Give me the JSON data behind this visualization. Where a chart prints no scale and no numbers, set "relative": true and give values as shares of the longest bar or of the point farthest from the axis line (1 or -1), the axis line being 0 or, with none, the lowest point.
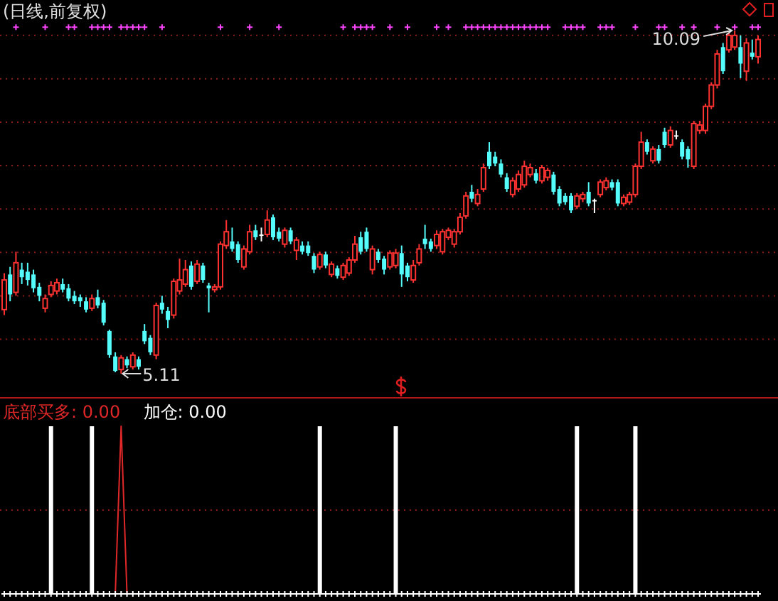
{
  "chart_data": [
    {
      "type": "candlestick",
      "title": "(日线,前复权)",
      "categories": [
        null,
        null,
        null,
        null,
        null,
        null,
        null,
        null,
        null,
        null,
        null,
        null,
        null,
        null,
        null,
        null,
        null,
        null,
        null,
        null,
        null,
        null,
        null,
        null,
        null,
        null,
        null,
        null,
        null,
        null,
        null,
        null,
        null,
        null,
        null,
        null,
        null,
        null,
        null,
        null,
        null,
        null,
        null,
        null,
        null,
        null,
        null,
        null,
        null,
        null,
        null,
        null,
        null,
        null,
        null,
        null,
        null,
        null,
        null,
        null,
        null,
        null,
        null,
        null,
        null,
        null,
        null,
        null,
        null,
        null,
        null,
        null,
        null,
        null,
        null,
        null,
        null,
        null,
        null,
        null,
        null,
        null,
        null,
        null,
        null,
        null,
        null,
        null,
        null,
        null,
        null,
        null,
        null,
        null,
        null,
        null,
        null,
        null,
        null,
        null,
        null,
        null,
        null,
        null,
        null,
        null,
        null,
        null,
        null,
        null,
        null,
        null,
        null,
        null,
        null,
        null,
        null,
        null,
        null,
        null,
        null,
        null,
        null,
        null,
        null,
        null,
        null,
        null,
        null,
        null
      ],
      "ohlc": [
        [
          6.04,
          6.57,
          5.96,
          6.47
        ],
        [
          6.55,
          6.66,
          6.16,
          6.26
        ],
        [
          6.29,
          6.88,
          6.24,
          6.72
        ],
        [
          6.62,
          6.72,
          6.41,
          6.51
        ],
        [
          6.59,
          6.72,
          6.39,
          6.47
        ],
        [
          6.55,
          6.62,
          6.29,
          6.35
        ],
        [
          6.37,
          6.43,
          6.16,
          6.24
        ],
        [
          6.06,
          6.26,
          6.0,
          6.2
        ],
        [
          6.26,
          6.45,
          6.22,
          6.39
        ],
        [
          6.31,
          6.49,
          6.26,
          6.43
        ],
        [
          6.41,
          6.49,
          6.29,
          6.33
        ],
        [
          6.35,
          6.41,
          6.16,
          6.2
        ],
        [
          6.24,
          6.31,
          6.12,
          6.16
        ],
        [
          6.22,
          6.26,
          6.08,
          6.16
        ],
        [
          6.16,
          6.22,
          6.0,
          6.04
        ],
        [
          6.06,
          6.26,
          6.02,
          6.2
        ],
        [
          6.22,
          6.33,
          6.06,
          6.1
        ],
        [
          6.14,
          6.18,
          5.81,
          5.85
        ],
        [
          5.73,
          5.75,
          5.34,
          5.38
        ],
        [
          5.36,
          5.42,
          5.13,
          5.15
        ],
        [
          5.17,
          5.38,
          5.11,
          5.34
        ],
        [
          5.32,
          5.36,
          5.19,
          5.23
        ],
        [
          5.21,
          5.42,
          5.17,
          5.38
        ],
        [
          5.32,
          5.36,
          5.17,
          5.21
        ],
        [
          5.73,
          5.83,
          5.54,
          5.58
        ],
        [
          5.63,
          5.67,
          5.38,
          5.42
        ],
        [
          5.38,
          6.14,
          5.32,
          6.1
        ],
        [
          6.14,
          6.24,
          5.98,
          6.04
        ],
        [
          6.02,
          6.08,
          5.77,
          5.89
        ],
        [
          5.96,
          6.49,
          5.91,
          6.45
        ],
        [
          6.31,
          6.78,
          6.26,
          6.47
        ],
        [
          6.41,
          6.76,
          6.37,
          6.62
        ],
        [
          6.68,
          6.74,
          6.33,
          6.37
        ],
        [
          6.45,
          6.76,
          6.41,
          6.7
        ],
        [
          6.68,
          6.72,
          6.43,
          6.47
        ],
        [
          6.39,
          6.43,
          6.0,
          6.35
        ],
        [
          6.33,
          6.41,
          6.29,
          6.37
        ],
        [
          6.37,
          7.03,
          6.33,
          6.99
        ],
        [
          6.97,
          7.34,
          6.92,
          7.17
        ],
        [
          7.03,
          7.23,
          6.88,
          6.92
        ],
        [
          6.99,
          7.03,
          6.72,
          6.76
        ],
        [
          6.66,
          6.97,
          6.62,
          6.92
        ],
        [
          6.88,
          7.27,
          6.84,
          7.17
        ],
        [
          7.19,
          7.27,
          7.05,
          7.09
        ],
        [
          7.13,
          7.23,
          7.03,
          7.13
        ],
        [
          7.13,
          7.48,
          7.09,
          7.34
        ],
        [
          7.38,
          7.42,
          7.05,
          7.09
        ],
        [
          7.17,
          7.23,
          7.03,
          7.07
        ],
        [
          6.99,
          7.23,
          6.94,
          7.19
        ],
        [
          7.19,
          7.23,
          6.99,
          7.03
        ],
        [
          6.9,
          7.09,
          6.76,
          7.05
        ],
        [
          6.97,
          7.03,
          6.84,
          6.88
        ],
        [
          6.97,
          7.03,
          6.82,
          6.86
        ],
        [
          6.82,
          6.86,
          6.57,
          6.62
        ],
        [
          6.66,
          6.88,
          6.62,
          6.84
        ],
        [
          6.84,
          6.88,
          6.64,
          6.68
        ],
        [
          6.55,
          6.74,
          6.51,
          6.7
        ],
        [
          6.64,
          6.68,
          6.49,
          6.53
        ],
        [
          6.51,
          6.72,
          6.47,
          6.68
        ],
        [
          6.57,
          6.8,
          6.53,
          6.76
        ],
        [
          6.76,
          7.11,
          6.72,
          6.99
        ],
        [
          7.09,
          7.17,
          6.84,
          6.88
        ],
        [
          7.17,
          7.23,
          6.88,
          6.92
        ],
        [
          6.62,
          6.97,
          6.55,
          6.92
        ],
        [
          6.88,
          6.92,
          6.72,
          6.76
        ],
        [
          6.78,
          6.82,
          6.55,
          6.62
        ],
        [
          6.66,
          6.9,
          6.62,
          6.86
        ],
        [
          6.68,
          6.92,
          6.64,
          6.86
        ],
        [
          6.86,
          6.97,
          6.37,
          6.55
        ],
        [
          6.68,
          6.72,
          6.45,
          6.51
        ],
        [
          6.47,
          6.76,
          6.43,
          6.68
        ],
        [
          6.72,
          6.99,
          6.68,
          6.92
        ],
        [
          7.07,
          7.27,
          6.92,
          6.99
        ],
        [
          7.03,
          7.07,
          6.88,
          6.92
        ],
        [
          6.97,
          7.19,
          6.92,
          7.13
        ],
        [
          6.88,
          7.21,
          6.84,
          7.17
        ],
        [
          7.09,
          7.23,
          7.05,
          7.19
        ],
        [
          6.99,
          7.21,
          6.94,
          7.17
        ],
        [
          7.17,
          7.44,
          7.13,
          7.38
        ],
        [
          7.4,
          7.75,
          7.36,
          7.69
        ],
        [
          7.75,
          7.85,
          7.6,
          7.65
        ],
        [
          7.58,
          7.79,
          7.54,
          7.71
        ],
        [
          7.79,
          8.16,
          7.75,
          8.1
        ],
        [
          8.33,
          8.47,
          8.08,
          8.12
        ],
        [
          8.26,
          8.33,
          8.12,
          8.16
        ],
        [
          8.16,
          8.22,
          7.96,
          8.0
        ],
        [
          7.96,
          8.02,
          7.75,
          7.79
        ],
        [
          7.71,
          7.96,
          7.67,
          7.91
        ],
        [
          7.79,
          8.06,
          7.75,
          8.0
        ],
        [
          7.85,
          8.2,
          7.81,
          8.12
        ],
        [
          8.0,
          8.16,
          7.96,
          8.1
        ],
        [
          8.02,
          8.08,
          7.87,
          7.91
        ],
        [
          7.91,
          8.14,
          7.87,
          8.1
        ],
        [
          7.96,
          8.1,
          7.91,
          8.06
        ],
        [
          8.0,
          8.04,
          7.71,
          7.75
        ],
        [
          7.79,
          7.83,
          7.54,
          7.58
        ],
        [
          7.69,
          7.73,
          7.56,
          7.6
        ],
        [
          7.69,
          7.73,
          7.44,
          7.48
        ],
        [
          7.54,
          7.73,
          7.5,
          7.69
        ],
        [
          7.65,
          7.75,
          7.6,
          7.71
        ],
        [
          7.75,
          7.89,
          7.54,
          7.58
        ],
        [
          7.63,
          7.65,
          7.44,
          7.63
        ],
        [
          7.71,
          7.93,
          7.67,
          7.89
        ],
        [
          7.81,
          7.96,
          7.77,
          7.91
        ],
        [
          7.89,
          7.93,
          7.77,
          7.81
        ],
        [
          7.89,
          7.93,
          7.54,
          7.58
        ],
        [
          7.58,
          7.71,
          7.54,
          7.67
        ],
        [
          7.6,
          7.75,
          7.56,
          7.71
        ],
        [
          7.71,
          8.16,
          7.67,
          8.12
        ],
        [
          8.12,
          8.62,
          8.08,
          8.47
        ],
        [
          8.47,
          8.51,
          8.29,
          8.33
        ],
        [
          8.2,
          8.41,
          8.16,
          8.37
        ],
        [
          8.37,
          8.43,
          8.16,
          8.2
        ],
        [
          8.62,
          8.68,
          8.39,
          8.43
        ],
        [
          8.43,
          8.7,
          8.39,
          8.64
        ],
        [
          8.57,
          8.64,
          8.51,
          8.57
        ],
        [
          8.47,
          8.51,
          8.22,
          8.26
        ],
        [
          8.37,
          8.41,
          8.1,
          8.22
        ],
        [
          8.12,
          8.78,
          8.08,
          8.74
        ],
        [
          8.64,
          8.78,
          8.59,
          8.72
        ],
        [
          8.64,
          9.03,
          8.59,
          8.99
        ],
        [
          8.99,
          9.34,
          8.95,
          9.3
        ],
        [
          9.3,
          9.81,
          9.25,
          9.75
        ],
        [
          9.85,
          9.91,
          9.46,
          9.5
        ],
        [
          9.81,
          10.06,
          9.77,
          10.02
        ],
        [
          9.85,
          10.09,
          9.81,
          10.02
        ],
        [
          9.85,
          10.02,
          9.4,
          9.61
        ],
        [
          9.5,
          9.98,
          9.36,
          9.91
        ],
        [
          9.77,
          9.96,
          9.67,
          9.71
        ],
        [
          9.71,
          10.02,
          9.61,
          9.96
        ]
      ],
      "colors": [
        "#ff3232",
        "#54fcfc",
        "#ff3232",
        "#54fcfc",
        "#54fcfc",
        "#54fcfc",
        "#54fcfc",
        "#ff3232",
        "#ff3232",
        "#ff3232",
        "#54fcfc",
        "#54fcfc",
        "#54fcfc",
        "#54fcfc",
        "#54fcfc",
        "#ff3232",
        "#54fcfc",
        "#54fcfc",
        "#54fcfc",
        "#54fcfc",
        "#ff3232",
        "#54fcfc",
        "#ff3232",
        "#54fcfc",
        "#54fcfc",
        "#54fcfc",
        "#ff3232",
        "#54fcfc",
        "#54fcfc",
        "#ff3232",
        "#ff3232",
        "#ff3232",
        "#54fcfc",
        "#ff3232",
        "#54fcfc",
        "#54fcfc",
        "#ff3232",
        "#ff3232",
        "#ff3232",
        "#54fcfc",
        "#54fcfc",
        "#ff3232",
        "#ff3232",
        "#54fcfc",
        "#ffffff",
        "#ff3232",
        "#54fcfc",
        "#54fcfc",
        "#ff3232",
        "#54fcfc",
        "#ff3232",
        "#54fcfc",
        "#54fcfc",
        "#54fcfc",
        "#ff3232",
        "#54fcfc",
        "#ff3232",
        "#54fcfc",
        "#ff3232",
        "#ff3232",
        "#ff3232",
        "#54fcfc",
        "#54fcfc",
        "#ff3232",
        "#54fcfc",
        "#54fcfc",
        "#ff3232",
        "#ff3232",
        "#54fcfc",
        "#54fcfc",
        "#ff3232",
        "#ff3232",
        "#54fcfc",
        "#54fcfc",
        "#ff3232",
        "#ff3232",
        "#ff3232",
        "#ff3232",
        "#ff3232",
        "#ff3232",
        "#54fcfc",
        "#ff3232",
        "#ff3232",
        "#54fcfc",
        "#54fcfc",
        "#54fcfc",
        "#54fcfc",
        "#ff3232",
        "#ff3232",
        "#ff3232",
        "#ff3232",
        "#54fcfc",
        "#ff3232",
        "#ff3232",
        "#54fcfc",
        "#54fcfc",
        "#54fcfc",
        "#54fcfc",
        "#ff3232",
        "#ff3232",
        "#54fcfc",
        "#ffffff",
        "#ff3232",
        "#ff3232",
        "#54fcfc",
        "#54fcfc",
        "#ff3232",
        "#ff3232",
        "#ff3232",
        "#ff3232",
        "#54fcfc",
        "#ff3232",
        "#54fcfc",
        "#54fcfc",
        "#ff3232",
        "#ffffff",
        "#54fcfc",
        "#54fcfc",
        "#ff3232",
        "#ff3232",
        "#ff3232",
        "#ff3232",
        "#ff3232",
        "#54fcfc",
        "#ff3232",
        "#ff3232",
        "#54fcfc",
        "#ff3232",
        "#54fcfc",
        "#ff3232"
      ],
      "yticks": [
        {
          "value": 10.02,
          "label": null
        },
        {
          "value": 9.39,
          "label": null
        },
        {
          "value": 8.76,
          "label": null
        },
        {
          "value": 8.13,
          "label": null
        },
        {
          "value": 7.5,
          "label": null
        },
        {
          "value": 6.87,
          "label": null
        },
        {
          "value": 6.24,
          "label": null
        },
        {
          "value": 5.61,
          "label": null
        }
      ],
      "grid": "y",
      "annotations": [
        {
          "text": "10.09",
          "y": 10.09
        },
        "5.11"
      ],
      "series": [
        {
          "type": "scatter",
          "marker": "cross",
          "color": "#ff44ff",
          "values": [
            null,
            null,
            10.14,
            null,
            null,
            null,
            null,
            10.14,
            null,
            null,
            null,
            10.14,
            10.14,
            null,
            null,
            10.14,
            10.14,
            10.14,
            10.14,
            null,
            10.14,
            10.14,
            10.14,
            10.14,
            10.14,
            null,
            null,
            10.14,
            null,
            null,
            null,
            null,
            null,
            null,
            null,
            null,
            null,
            10.14,
            null,
            null,
            null,
            null,
            10.14,
            null,
            null,
            null,
            null,
            10.14,
            null,
            null,
            null,
            null,
            null,
            null,
            null,
            null,
            null,
            null,
            10.14,
            null,
            10.14,
            10.14,
            10.14,
            10.14,
            null,
            null,
            10.14,
            null,
            null,
            10.14,
            null,
            null,
            null,
            null,
            10.14,
            null,
            10.14,
            null,
            null,
            10.14,
            10.14,
            10.14,
            10.14,
            10.14,
            10.14,
            10.14,
            10.14,
            10.14,
            10.14,
            10.14,
            10.14,
            10.14,
            10.14,
            10.14,
            null,
            null,
            10.14,
            10.14,
            10.14,
            10.14,
            null,
            null,
            10.14,
            10.14,
            10.14,
            null,
            null,
            null,
            10.14,
            null,
            null,
            null,
            10.14,
            10.14,
            null,
            null,
            10.14,
            null,
            10.14,
            null,
            null,
            null,
            10.14,
            null,
            null,
            10.14,
            null,
            null,
            10.14,
            10.14
          ]
        }
      ]
    },
    {
      "type": "line",
      "relative": true,
      "categories": [
        null,
        null,
        null,
        null,
        null,
        null,
        null,
        null,
        null,
        null,
        null,
        null,
        null,
        null,
        null,
        null,
        null,
        null,
        null,
        null,
        null,
        null,
        null,
        null,
        null,
        null,
        null,
        null,
        null,
        null,
        null,
        null,
        null,
        null,
        null,
        null,
        null,
        null,
        null,
        null,
        null,
        null,
        null,
        null,
        null,
        null,
        null,
        null,
        null,
        null,
        null,
        null,
        null,
        null,
        null,
        null,
        null,
        null,
        null,
        null,
        null,
        null,
        null,
        null,
        null,
        null,
        null,
        null,
        null,
        null,
        null,
        null,
        null,
        null,
        null,
        null,
        null,
        null,
        null,
        null,
        null,
        null,
        null,
        null,
        null,
        null,
        null,
        null,
        null,
        null,
        null,
        null,
        null,
        null,
        null,
        null,
        null,
        null,
        null,
        null,
        null,
        null,
        null,
        null,
        null,
        null,
        null,
        null,
        null,
        null,
        null,
        null,
        null,
        null,
        null,
        null,
        null,
        null,
        null,
        null,
        null,
        null,
        null,
        null,
        null,
        null,
        null,
        null,
        null,
        null
      ],
      "ref_lines": [
        {
          "axis": "y",
          "value": 0.5,
          "color": "#8b1a1a",
          "line_style": "dotted"
        }
      ],
      "series": [
        {
          "name": "底部买多: 0.00",
          "type": "line",
          "color": "#e02828",
          "values": [
            null,
            null,
            null,
            null,
            null,
            null,
            null,
            null,
            null,
            null,
            null,
            null,
            null,
            null,
            null,
            null,
            null,
            null,
            null,
            0,
            1,
            0,
            null,
            null,
            null,
            null,
            null,
            null,
            null,
            null,
            null,
            null,
            null,
            null,
            null,
            null,
            null,
            null,
            null,
            null,
            null,
            null,
            null,
            null,
            null,
            null,
            null,
            null,
            null,
            null,
            null,
            null,
            null,
            null,
            null,
            null,
            null,
            null,
            null,
            null,
            null,
            null,
            null,
            null,
            null,
            null,
            null,
            null,
            null,
            null,
            null,
            null,
            null,
            null,
            null,
            null,
            null,
            null,
            null,
            null,
            null,
            null,
            null,
            null,
            null,
            null,
            null,
            null,
            null,
            null,
            null,
            null,
            null,
            null,
            null,
            null,
            null,
            null,
            null,
            null,
            null,
            null,
            null,
            null,
            null,
            null,
            null,
            null,
            null,
            null,
            null,
            null,
            null,
            null,
            null,
            null,
            null,
            null,
            null,
            null,
            null,
            null,
            null,
            null,
            null,
            null,
            null,
            null,
            null,
            null
          ]
        },
        {
          "name": "加仓: 0.00",
          "type": "bar",
          "color": "#ffffff",
          "values": [
            null,
            null,
            null,
            null,
            null,
            null,
            null,
            null,
            1,
            null,
            null,
            null,
            null,
            null,
            null,
            1,
            null,
            null,
            null,
            null,
            null,
            null,
            null,
            null,
            null,
            null,
            null,
            null,
            null,
            null,
            null,
            null,
            null,
            null,
            null,
            null,
            null,
            null,
            null,
            null,
            null,
            null,
            null,
            null,
            null,
            null,
            null,
            null,
            null,
            null,
            null,
            null,
            null,
            null,
            1,
            null,
            null,
            null,
            null,
            null,
            null,
            null,
            null,
            null,
            null,
            null,
            null,
            1,
            null,
            null,
            null,
            null,
            null,
            null,
            null,
            null,
            null,
            null,
            null,
            null,
            null,
            null,
            null,
            null,
            null,
            null,
            null,
            null,
            null,
            null,
            null,
            null,
            null,
            null,
            null,
            null,
            null,
            null,
            1,
            null,
            null,
            null,
            null,
            null,
            null,
            null,
            null,
            null,
            1,
            null,
            null,
            null,
            null,
            null,
            null,
            null,
            null,
            null,
            null,
            null,
            null,
            null,
            null,
            null,
            null,
            null,
            null,
            null,
            null,
            null
          ]
        },
        {
          "type": "scatter",
          "marker": "cross",
          "color": "#ffffff",
          "values": [
            0,
            0,
            0,
            0,
            0,
            0,
            0,
            0,
            0,
            0,
            0,
            0,
            0,
            0,
            0,
            0,
            0,
            0,
            0,
            0,
            0,
            0,
            0,
            0,
            0,
            0,
            0,
            0,
            0,
            0,
            0,
            0,
            0,
            0,
            0,
            0,
            0,
            0,
            0,
            0,
            0,
            0,
            0,
            0,
            0,
            0,
            0,
            0,
            0,
            0,
            0,
            0,
            0,
            0,
            0,
            0,
            0,
            0,
            0,
            0,
            0,
            0,
            0,
            0,
            0,
            0,
            0,
            0,
            0,
            0,
            0,
            0,
            0,
            0,
            0,
            0,
            0,
            0,
            0,
            0,
            0,
            0,
            0,
            0,
            0,
            0,
            0,
            0,
            0,
            0,
            0,
            0,
            0,
            0,
            0,
            0,
            0,
            0,
            0,
            0,
            0,
            0,
            0,
            0,
            0,
            0,
            0,
            0,
            0,
            0,
            0,
            0,
            0,
            0,
            0,
            0,
            0,
            0,
            0,
            0,
            0,
            0,
            0,
            0,
            0,
            0,
            0,
            0,
            0,
            0
          ]
        }
      ]
    }
  ]
}
